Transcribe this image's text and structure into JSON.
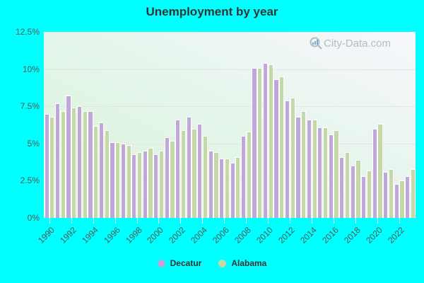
{
  "title": "Unemployment by year",
  "watermark": "City-Data.com",
  "colors": {
    "background": "#00ffff",
    "decatur": "#bfa8d9",
    "alabama": "#c5d8a8"
  },
  "y_ticks": [
    "0%",
    "2.5%",
    "5%",
    "7.5%",
    "10%",
    "12.5%"
  ],
  "x_ticks": [
    "1990",
    "1992",
    "1994",
    "1996",
    "1998",
    "2000",
    "2002",
    "2004",
    "2006",
    "2008",
    "2010",
    "2012",
    "2014",
    "2016",
    "2018",
    "2020",
    "2022"
  ],
  "legend": [
    {
      "label": "Decatur",
      "color": "#bfa8d9"
    },
    {
      "label": "Alabama",
      "color": "#c5d8a8"
    }
  ],
  "chart_data": {
    "type": "bar",
    "title": "Unemployment by year",
    "xlabel": "",
    "ylabel": "",
    "ylim": [
      0,
      12.5
    ],
    "y_tick_values": [
      0,
      2.5,
      5,
      7.5,
      10,
      12.5
    ],
    "grid": true,
    "legend_position": "bottom",
    "categories": [
      1990,
      1991,
      1992,
      1993,
      1994,
      1995,
      1996,
      1997,
      1998,
      1999,
      2000,
      2001,
      2002,
      2003,
      2004,
      2005,
      2006,
      2007,
      2008,
      2009,
      2010,
      2011,
      2012,
      2013,
      2014,
      2015,
      2016,
      2017,
      2018,
      2019,
      2020,
      2021,
      2022,
      2023
    ],
    "series": [
      {
        "name": "Decatur",
        "color": "#bfa8d9",
        "values": [
          7.0,
          7.7,
          8.2,
          7.5,
          7.2,
          6.4,
          5.1,
          5.0,
          4.3,
          4.5,
          4.3,
          5.4,
          6.6,
          6.8,
          6.3,
          4.5,
          4.0,
          3.7,
          5.5,
          10.1,
          10.4,
          9.3,
          7.9,
          6.8,
          6.6,
          6.1,
          5.6,
          4.1,
          3.5,
          2.8,
          6.0,
          3.1,
          2.3,
          2.8
        ]
      },
      {
        "name": "Alabama",
        "color": "#c5d8a8",
        "values": [
          6.8,
          7.2,
          7.4,
          7.2,
          6.2,
          5.9,
          5.1,
          4.9,
          4.4,
          4.7,
          4.5,
          5.2,
          5.9,
          6.0,
          5.5,
          4.4,
          4.0,
          4.1,
          5.8,
          10.1,
          10.3,
          9.5,
          8.1,
          7.2,
          6.6,
          6.1,
          5.9,
          4.4,
          3.9,
          3.2,
          6.3,
          3.3,
          2.5,
          3.3
        ]
      }
    ]
  }
}
